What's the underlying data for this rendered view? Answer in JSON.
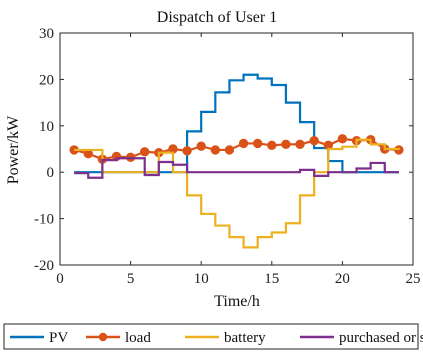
{
  "chart_data": {
    "type": "line",
    "title": "Dispatch of User 1",
    "xlabel": "Time/h",
    "ylabel": "Power/kW",
    "xlim": [
      0,
      25
    ],
    "ylim": [
      -20,
      30
    ],
    "x_ticks": [
      0,
      5,
      10,
      15,
      20,
      25
    ],
    "y_ticks": [
      -20,
      -10,
      0,
      10,
      20,
      30
    ],
    "grid": false,
    "legend_position": "bottom",
    "x": [
      1,
      2,
      3,
      4,
      5,
      6,
      7,
      8,
      9,
      10,
      11,
      12,
      13,
      14,
      15,
      16,
      17,
      18,
      19,
      20,
      21,
      22,
      23,
      24
    ],
    "series": [
      {
        "name": "PV",
        "color": "#0072BD",
        "style": "stairs",
        "values": [
          0,
          0,
          0,
          0,
          0,
          0,
          0,
          0,
          8.8,
          13.0,
          17.2,
          19.8,
          21.0,
          20.2,
          18.8,
          15.0,
          10.8,
          5.2,
          2.4,
          0,
          0,
          0,
          0,
          0
        ]
      },
      {
        "name": "load",
        "color": "#D95319",
        "style": "line-marker",
        "values": [
          4.8,
          4.0,
          2.8,
          3.4,
          3.2,
          4.4,
          4.2,
          5.0,
          4.6,
          5.6,
          4.8,
          4.8,
          6.2,
          6.2,
          5.8,
          6.0,
          6.0,
          6.8,
          5.8,
          7.2,
          6.8,
          7.0,
          5.0,
          4.8
        ]
      },
      {
        "name": "battery",
        "color": "#EDB120",
        "style": "stairs",
        "values": [
          4.8,
          4.8,
          0,
          0,
          0,
          0,
          4.2,
          0,
          -5.0,
          -9.0,
          -11.5,
          -14.0,
          -16.2,
          -14.0,
          -13.0,
          -11.0,
          -5.0,
          0,
          5.0,
          5.5,
          7.0,
          6.0,
          5.0,
          4.8
        ]
      },
      {
        "name": "purchased or sold",
        "color": "#7E2F8E",
        "style": "stairs",
        "values": [
          -0.2,
          -1.2,
          2.6,
          3.0,
          3.0,
          -0.6,
          2.2,
          1.6,
          0,
          0,
          0,
          0,
          0,
          0,
          0,
          0,
          0.5,
          -0.8,
          0,
          0,
          0.8,
          2.0,
          0,
          0
        ]
      }
    ]
  }
}
